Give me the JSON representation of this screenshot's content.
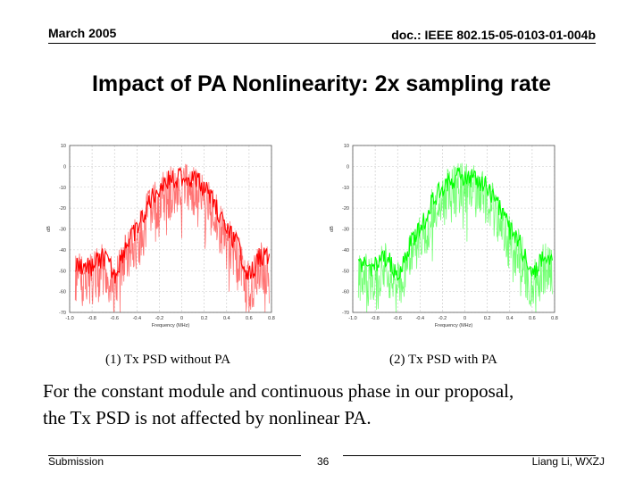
{
  "header": {
    "date": "March 2005",
    "doc_id": "doc.: IEEE 802.15-05-0103-01-004b"
  },
  "slide": {
    "title": "Impact of PA Nonlinearity: 2x sampling rate",
    "body_line1": "For the constant module and continuous phase in our proposal,",
    "body_line2": "the Tx PSD is not affected by nonlinear PA."
  },
  "captions": {
    "left": "(1) Tx PSD without PA",
    "right": "(2) Tx PSD with  PA"
  },
  "footer": {
    "left": "Submission",
    "page": "36",
    "right": "Liang Li, WXZJ"
  },
  "chart_data": [
    {
      "type": "line",
      "title": "(1) Tx PSD without PA",
      "xlabel": "Frequency (MHz)",
      "ylabel": "dB",
      "xlim": [
        -1.0,
        0.8
      ],
      "ylim": [
        -70,
        10
      ],
      "xticks": [
        -1.0,
        -0.8,
        -0.6,
        -0.4,
        -0.2,
        0,
        0.2,
        0.4,
        0.6,
        0.8
      ],
      "yticks": [
        10,
        0,
        -10,
        -20,
        -30,
        -40,
        -50,
        -60,
        -70
      ],
      "xtick_labels": [
        "-1.0",
        "-0.8",
        "-0.6",
        "-0.4",
        "-0.2",
        "0",
        "0.2",
        "0.4",
        "0.6",
        "0.8"
      ],
      "ytick_labels": [
        "10",
        "0",
        "-10",
        "-20",
        "-30",
        "-40",
        "-50",
        "-60",
        "-70"
      ],
      "grid": true,
      "color": "#ff0000",
      "series": [
        {
          "name": "Tx PSD",
          "x": [
            -0.8,
            -0.7,
            -0.6,
            -0.5,
            -0.4,
            -0.3,
            -0.2,
            -0.1,
            0,
            0.1,
            0.2,
            0.3,
            0.4,
            0.5,
            0.6,
            0.7
          ],
          "y": [
            -45,
            -40,
            -50,
            -35,
            -28,
            -15,
            -7,
            -3,
            -2,
            -3,
            -7,
            -15,
            -28,
            -35,
            -50,
            -40
          ]
        }
      ]
    },
    {
      "type": "line",
      "title": "(2) Tx PSD with  PA",
      "xlabel": "Frequency (MHz)",
      "ylabel": "dB",
      "xlim": [
        -1.0,
        0.8
      ],
      "ylim": [
        -70,
        10
      ],
      "xticks": [
        -1.0,
        -0.8,
        -0.6,
        -0.4,
        -0.2,
        0,
        0.2,
        0.4,
        0.6,
        0.8
      ],
      "yticks": [
        10,
        0,
        -10,
        -20,
        -30,
        -40,
        -50,
        -60,
        -70
      ],
      "xtick_labels": [
        "-1.0",
        "-0.8",
        "-0.6",
        "-0.4",
        "-0.2",
        "0",
        "0.2",
        "0.4",
        "0.6",
        "0.8"
      ],
      "ytick_labels": [
        "10",
        "0",
        "-10",
        "-20",
        "-30",
        "-40",
        "-50",
        "-60",
        "-70"
      ],
      "grid": true,
      "color": "#00ff00",
      "series": [
        {
          "name": "Tx PSD",
          "x": [
            -0.8,
            -0.7,
            -0.6,
            -0.5,
            -0.4,
            -0.3,
            -0.2,
            -0.1,
            0,
            0.1,
            0.2,
            0.3,
            0.4,
            0.5,
            0.6,
            0.7
          ],
          "y": [
            -45,
            -40,
            -50,
            -35,
            -28,
            -15,
            -7,
            -3,
            -2,
            -3,
            -7,
            -15,
            -28,
            -35,
            -50,
            -40
          ]
        }
      ]
    }
  ]
}
